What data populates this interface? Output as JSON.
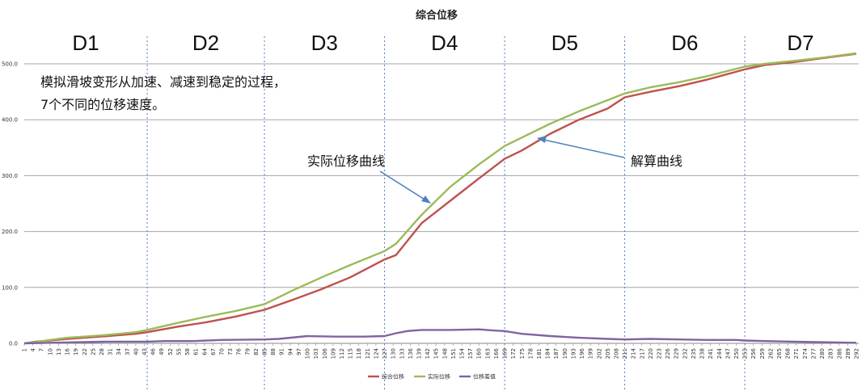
{
  "chart_data": {
    "type": "line",
    "title": "综合位移",
    "ylim": [
      0,
      500
    ],
    "yticks": [
      "0.0",
      "100.0",
      "200.0",
      "300.0",
      "400.0",
      "500.0"
    ],
    "x_start": 1,
    "x_end": 292,
    "x_tick_step": 3,
    "grid": "horizontal",
    "legend_position": "bottom",
    "colors": {
      "series1": "#c0504d",
      "series2": "#9bbb59",
      "series3": "#8064a2",
      "phase_line": "#4f81bd",
      "arrow": "#4f81bd"
    },
    "phases": [
      {
        "label": "D1",
        "start": 1,
        "end": 44
      },
      {
        "label": "D2",
        "start": 44,
        "end": 85
      },
      {
        "label": "D3",
        "start": 85,
        "end": 127
      },
      {
        "label": "D4",
        "start": 127,
        "end": 169
      },
      {
        "label": "D5",
        "start": 169,
        "end": 211
      },
      {
        "label": "D6",
        "start": 211,
        "end": 253
      },
      {
        "label": "D7",
        "start": 253,
        "end": 292
      }
    ],
    "series": [
      {
        "name": "综合位移",
        "key": "series1",
        "points": [
          [
            1,
            0
          ],
          [
            5,
            3
          ],
          [
            10,
            5
          ],
          [
            16,
            8
          ],
          [
            22,
            10
          ],
          [
            30,
            13
          ],
          [
            40,
            17
          ],
          [
            44,
            20
          ],
          [
            55,
            30
          ],
          [
            65,
            38
          ],
          [
            75,
            48
          ],
          [
            85,
            60
          ],
          [
            95,
            78
          ],
          [
            105,
            97
          ],
          [
            115,
            118
          ],
          [
            127,
            150
          ],
          [
            131,
            158
          ],
          [
            140,
            215
          ],
          [
            150,
            255
          ],
          [
            160,
            295
          ],
          [
            169,
            330
          ],
          [
            175,
            345
          ],
          [
            185,
            375
          ],
          [
            195,
            400
          ],
          [
            205,
            420
          ],
          [
            211,
            440
          ],
          [
            220,
            450
          ],
          [
            230,
            460
          ],
          [
            240,
            472
          ],
          [
            253,
            490
          ],
          [
            260,
            498
          ],
          [
            270,
            503
          ],
          [
            280,
            510
          ],
          [
            292,
            518
          ]
        ]
      },
      {
        "name": "实际位移",
        "key": "series2",
        "points": [
          [
            1,
            0
          ],
          [
            5,
            2
          ],
          [
            10,
            6
          ],
          [
            16,
            10
          ],
          [
            22,
            12
          ],
          [
            30,
            15
          ],
          [
            40,
            20
          ],
          [
            44,
            24
          ],
          [
            55,
            37
          ],
          [
            65,
            48
          ],
          [
            75,
            58
          ],
          [
            85,
            70
          ],
          [
            95,
            95
          ],
          [
            105,
            118
          ],
          [
            115,
            140
          ],
          [
            127,
            165
          ],
          [
            131,
            178
          ],
          [
            140,
            230
          ],
          [
            150,
            280
          ],
          [
            160,
            320
          ],
          [
            169,
            353
          ],
          [
            175,
            368
          ],
          [
            185,
            393
          ],
          [
            195,
            415
          ],
          [
            205,
            435
          ],
          [
            211,
            447
          ],
          [
            220,
            458
          ],
          [
            230,
            467
          ],
          [
            240,
            478
          ],
          [
            253,
            495
          ],
          [
            260,
            500
          ],
          [
            270,
            505
          ],
          [
            280,
            511
          ],
          [
            292,
            519
          ]
        ]
      },
      {
        "name": "位移差值",
        "key": "series3",
        "points": [
          [
            1,
            0
          ],
          [
            10,
            1
          ],
          [
            20,
            2
          ],
          [
            30,
            3
          ],
          [
            44,
            3
          ],
          [
            50,
            4
          ],
          [
            60,
            4
          ],
          [
            70,
            6
          ],
          [
            85,
            7
          ],
          [
            90,
            8
          ],
          [
            100,
            13
          ],
          [
            110,
            12
          ],
          [
            120,
            12
          ],
          [
            127,
            13
          ],
          [
            131,
            18
          ],
          [
            135,
            22
          ],
          [
            140,
            24
          ],
          [
            150,
            24
          ],
          [
            160,
            25
          ],
          [
            165,
            23
          ],
          [
            169,
            22
          ],
          [
            175,
            17
          ],
          [
            185,
            13
          ],
          [
            195,
            10
          ],
          [
            205,
            8
          ],
          [
            211,
            7
          ],
          [
            220,
            8
          ],
          [
            230,
            7
          ],
          [
            240,
            6
          ],
          [
            250,
            6
          ],
          [
            253,
            5
          ],
          [
            260,
            4
          ],
          [
            270,
            3
          ],
          [
            280,
            2
          ],
          [
            292,
            1
          ]
        ]
      }
    ],
    "annotations": {
      "note_line1": "模拟滑坡变形从加速、减速到稳定的过程，",
      "note_line2": "7个不同的位移速度。",
      "arrow1_label": "实际位移曲线",
      "arrow2_label": "解算曲线"
    }
  }
}
